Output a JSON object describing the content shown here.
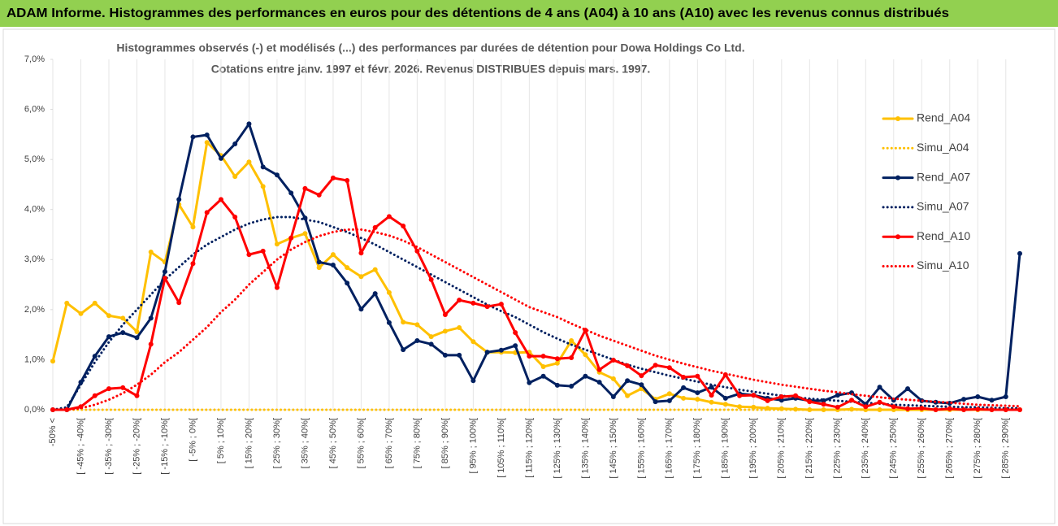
{
  "chart_data": {
    "type": "line",
    "title": "ADAM Informe. Histogrammes des performances en euros pour des détentions de 4 ans (A04) à 10 ans (A10) avec les revenus connus distribués",
    "subtitle": [
      "Histogrammes observés (-) et modélisés (...) des performances par durées de détention pour Dowa Holdings Co Ltd.",
      "Cotations entre janv. 1997 et févr. 2026. Revenus DISTRIBUES depuis mars. 1997."
    ],
    "categories": [
      "-50% <",
      null,
      "[ -45% ; -40%[",
      null,
      "[ -35% ; -30%[",
      null,
      "[ -25% ; -20%[",
      null,
      "[ -15% ; -10%[",
      null,
      "[ -5% ; 0%[",
      null,
      "[ 5% ; 10%[",
      null,
      "[ 15% ; 20%[",
      null,
      "[ 25% ; 30%[",
      null,
      "[ 35% ; 40%[",
      null,
      "[ 45% ; 50%[",
      null,
      "[ 55% ; 60%[",
      null,
      "[ 65% ; 70%[",
      null,
      "[ 75% ; 80%[",
      null,
      "[ 85% ; 90%[",
      null,
      "[ 95% ; 100%[",
      null,
      "[ 105% ; 110%[",
      null,
      "[ 115% ; 120%[",
      null,
      "[ 125% ; 130%[",
      null,
      "[ 135% ; 140%[",
      null,
      "[ 145% ; 150%[",
      null,
      "[ 155% ; 160%[",
      null,
      "[ 165% ; 170%[",
      null,
      "[ 175% ; 180%[",
      null,
      "[ 185% ; 190%[",
      null,
      "[ 195% ; 200%[",
      null,
      "[ 205% ; 210%[",
      null,
      "[ 215% ; 220%[",
      null,
      "[ 225% ; 230%[",
      null,
      "[ 235% ; 240%[",
      null,
      "[ 245% ; 250%[",
      null,
      "[ 255% ; 260%[",
      null,
      "[ 265% ; 270%[",
      null,
      "[ 275% ; 280%[",
      null,
      "[ 285% ; 290%[",
      null
    ],
    "series": [
      {
        "name": "Rend_A04",
        "color": "#ffc000",
        "line_style": "solid",
        "markers": true,
        "values": [
          0.97,
          2.13,
          1.92,
          2.13,
          1.88,
          1.83,
          1.56,
          3.15,
          2.95,
          4.1,
          3.65,
          5.34,
          5.08,
          4.66,
          4.95,
          4.46,
          3.31,
          3.43,
          3.52,
          2.84,
          3.1,
          2.84,
          2.66,
          2.8,
          2.34,
          1.75,
          1.7,
          1.46,
          1.57,
          1.64,
          1.36,
          1.15,
          1.15,
          1.14,
          1.15,
          0.86,
          0.93,
          1.38,
          1.1,
          0.75,
          0.62,
          0.28,
          0.42,
          0.21,
          0.32,
          0.23,
          0.21,
          0.15,
          0.11,
          0.06,
          0.05,
          0.03,
          0.02,
          0.01,
          0,
          0,
          0,
          0.01,
          0,
          0,
          0,
          0,
          0,
          0,
          0,
          0,
          0,
          0,
          0,
          0
        ]
      },
      {
        "name": "Simu_A04",
        "color": "#ffc000",
        "line_style": "dotted",
        "markers": false,
        "values": [
          0,
          0,
          0,
          0,
          0,
          0,
          0,
          0,
          0,
          0,
          0,
          0,
          0,
          0,
          0,
          0,
          0,
          0,
          0,
          0,
          0,
          0,
          0,
          0,
          0,
          0,
          0,
          0,
          0,
          0,
          0,
          0,
          0,
          0,
          0,
          0,
          0,
          0,
          0,
          0,
          0,
          0,
          0,
          0,
          0,
          0,
          0,
          0,
          0,
          0,
          0,
          0,
          0,
          0,
          0,
          0,
          0,
          0,
          0,
          0,
          0,
          0,
          0,
          0,
          0,
          0,
          0,
          0,
          0,
          0
        ]
      },
      {
        "name": "Rend_A07",
        "color": "#002060",
        "line_style": "solid",
        "markers": true,
        "values": [
          0,
          0,
          0.55,
          1.07,
          1.46,
          1.54,
          1.44,
          1.83,
          2.76,
          4.2,
          5.45,
          5.49,
          5.02,
          5.31,
          5.71,
          4.85,
          4.69,
          4.33,
          3.83,
          2.95,
          2.89,
          2.53,
          2.01,
          2.32,
          1.74,
          1.2,
          1.38,
          1.31,
          1.09,
          1.09,
          0.58,
          1.15,
          1.19,
          1.28,
          0.54,
          0.67,
          0.49,
          0.47,
          0.67,
          0.55,
          0.26,
          0.58,
          0.5,
          0.16,
          0.18,
          0.44,
          0.34,
          0.45,
          0.23,
          0.32,
          0.29,
          0.23,
          0.19,
          0.23,
          0.18,
          0.18,
          0.29,
          0.34,
          0.11,
          0.45,
          0.19,
          0.42,
          0.18,
          0.15,
          0.13,
          0.21,
          0.26,
          0.19,
          0.26,
          3.12
        ]
      },
      {
        "name": "Simu_A07",
        "color": "#002060",
        "line_style": "dotted",
        "markers": false,
        "values": [
          0,
          0.05,
          0.5,
          0.95,
          1.35,
          1.7,
          2.0,
          2.3,
          2.6,
          2.85,
          3.1,
          3.3,
          3.45,
          3.6,
          3.72,
          3.8,
          3.85,
          3.85,
          3.8,
          3.75,
          3.65,
          3.55,
          3.43,
          3.3,
          3.15,
          3.0,
          2.85,
          2.7,
          2.55,
          2.4,
          2.25,
          2.1,
          1.97,
          1.85,
          1.7,
          1.55,
          1.42,
          1.3,
          1.2,
          1.1,
          1.0,
          0.9,
          0.82,
          0.75,
          0.68,
          0.62,
          0.56,
          0.5,
          0.45,
          0.4,
          0.36,
          0.32,
          0.28,
          0.25,
          0.22,
          0.2,
          0.18,
          0.16,
          0.14,
          0.12,
          0.1,
          0.09,
          0.08,
          0.07,
          0.06,
          0.05,
          0.05,
          0.04,
          0.03,
          0.03
        ]
      },
      {
        "name": "Rend_A10",
        "color": "#ff0000",
        "line_style": "solid",
        "markers": true,
        "values": [
          0,
          0,
          0.06,
          0.28,
          0.42,
          0.44,
          0.28,
          1.31,
          2.63,
          2.14,
          2.92,
          3.94,
          4.2,
          3.85,
          3.1,
          3.17,
          2.44,
          3.43,
          4.42,
          4.29,
          4.63,
          4.58,
          3.13,
          3.64,
          3.86,
          3.67,
          3.17,
          2.6,
          1.9,
          2.19,
          2.13,
          2.06,
          2.11,
          1.54,
          1.07,
          1.07,
          1.02,
          1.04,
          1.59,
          0.8,
          0.99,
          0.88,
          0.68,
          0.89,
          0.84,
          0.65,
          0.67,
          0.29,
          0.7,
          0.28,
          0.29,
          0.18,
          0.26,
          0.28,
          0.16,
          0.11,
          0.05,
          0.19,
          0.06,
          0.15,
          0.06,
          0.02,
          0.03,
          0,
          0.02,
          0,
          0.01,
          0,
          0,
          0
        ]
      },
      {
        "name": "Simu_A10",
        "color": "#ff0000",
        "line_style": "dotted",
        "markers": false,
        "values": [
          0,
          0,
          0.03,
          0.1,
          0.2,
          0.33,
          0.5,
          0.7,
          0.95,
          1.15,
          1.4,
          1.65,
          1.95,
          2.2,
          2.5,
          2.75,
          3.0,
          3.2,
          3.35,
          3.47,
          3.55,
          3.6,
          3.6,
          3.55,
          3.48,
          3.38,
          3.25,
          3.1,
          2.95,
          2.8,
          2.65,
          2.5,
          2.35,
          2.2,
          2.05,
          1.95,
          1.85,
          1.72,
          1.6,
          1.48,
          1.38,
          1.28,
          1.18,
          1.08,
          1.0,
          0.92,
          0.85,
          0.78,
          0.72,
          0.66,
          0.6,
          0.55,
          0.5,
          0.46,
          0.42,
          0.38,
          0.35,
          0.31,
          0.28,
          0.25,
          0.22,
          0.2,
          0.18,
          0.16,
          0.14,
          0.12,
          0.1,
          0.09,
          0.08,
          0.07
        ]
      }
    ],
    "ylim": [
      0,
      7
    ],
    "yticks": [
      {
        "value": 0,
        "label": "0,0%"
      },
      {
        "value": 1,
        "label": "1,0%"
      },
      {
        "value": 2,
        "label": "2,0%"
      },
      {
        "value": 3,
        "label": "3,0%"
      },
      {
        "value": 4,
        "label": "4,0%"
      },
      {
        "value": 5,
        "label": "5,0%"
      },
      {
        "value": 6,
        "label": "6,0%"
      },
      {
        "value": 7,
        "label": "7,0%"
      }
    ],
    "legend": "right",
    "grid": "x"
  }
}
